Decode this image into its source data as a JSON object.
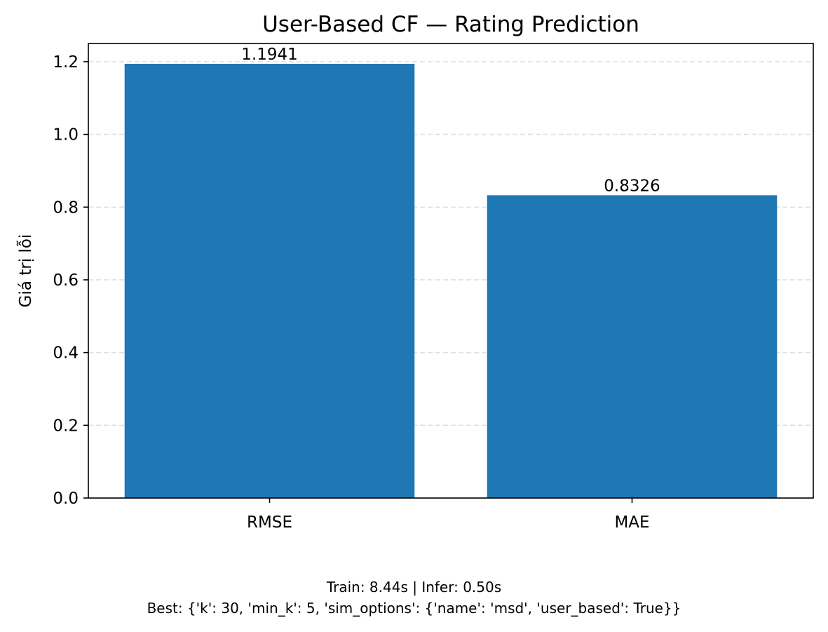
{
  "chart_data": {
    "type": "bar",
    "title": "User-Based CF — Rating Prediction",
    "xlabel": "",
    "ylabel": "Giá trị lỗi",
    "categories": [
      "RMSE",
      "MAE"
    ],
    "values": [
      1.1941,
      0.8326
    ],
    "data_labels": [
      "1.1941",
      "0.8326"
    ],
    "ylim": [
      0,
      1.25
    ],
    "yticks": [
      0.0,
      0.2,
      0.4,
      0.6,
      0.8,
      1.0,
      1.2
    ],
    "ytick_labels": [
      "0.0",
      "0.2",
      "0.4",
      "0.6",
      "0.8",
      "1.0",
      "1.2"
    ],
    "grid": "y-axis, dashed",
    "bar_color": "#1f77b4",
    "grid_color": "#e0e0e0"
  },
  "footnote": {
    "line1": "Train: 8.44s | Infer: 0.50s",
    "line2": "Best: {'k': 30, 'min_k': 5, 'sim_options': {'name': 'msd', 'user_based': True}}"
  }
}
